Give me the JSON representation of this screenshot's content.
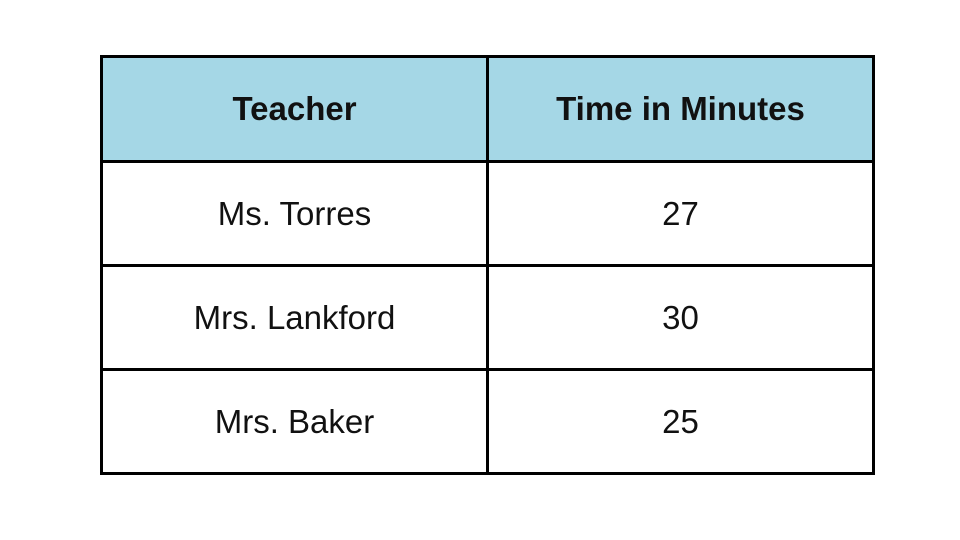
{
  "table": {
    "columns": [
      "Teacher",
      "Time in Minutes"
    ],
    "rows": [
      {
        "teacher": "Ms. Torres",
        "time": "27"
      },
      {
        "teacher": "Mrs. Lankford",
        "time": "30"
      },
      {
        "teacher": "Mrs. Baker",
        "time": "25"
      }
    ],
    "colors": {
      "header_bg": "#A5D7E6",
      "border": "#000000",
      "text": "#111111",
      "canvas_bg": "#FFFFFF"
    }
  },
  "chart_data": {
    "type": "table",
    "title": "",
    "columns": [
      "Teacher",
      "Time in Minutes"
    ],
    "rows": [
      [
        "Ms. Torres",
        27
      ],
      [
        "Mrs. Lankford",
        30
      ],
      [
        "Mrs. Baker",
        25
      ]
    ],
    "layout": {
      "header_fill": "#A5D7E6",
      "grid": "solid black borders",
      "alignment": "center"
    }
  }
}
